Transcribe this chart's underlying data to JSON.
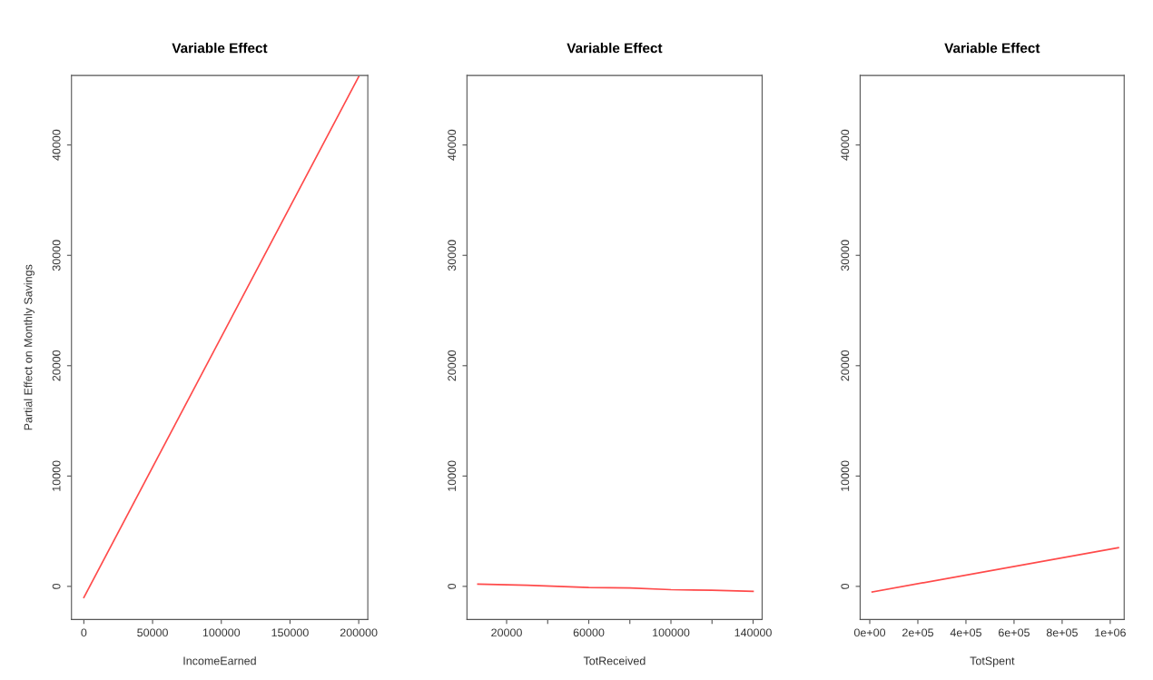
{
  "chart_data": [
    {
      "type": "line",
      "title": "Variable Effect",
      "xlabel": "IncomeEarned",
      "ylabel": "Partial Effect on Monthly Savings",
      "xlim": [
        -9000,
        206600
      ],
      "xticks": [
        0,
        50000,
        100000,
        150000,
        200000
      ],
      "ylim": [
        -3000,
        46300
      ],
      "yticks": [
        0,
        10000,
        20000,
        30000,
        40000
      ],
      "grid": false,
      "series": [
        {
          "color": "#ff4a4a",
          "x": [
            0,
            200000
          ],
          "values": [
            -1000,
            46200
          ]
        }
      ]
    },
    {
      "type": "line",
      "title": "Variable Effect",
      "xlabel": "TotReceived",
      "xlim": [
        700,
        144400
      ],
      "xticks": [
        20000,
        {
          "value": 40000,
          "label": null
        },
        60000,
        {
          "value": 80000,
          "label": null
        },
        100000,
        {
          "value": 120000,
          "label": null
        },
        140000
      ],
      "ylim": [
        -3000,
        46300
      ],
      "yticks": [
        0,
        10000,
        20000,
        30000,
        40000
      ],
      "grid": false,
      "series": [
        {
          "color": "#ff4a4a",
          "x": [
            6000,
            30000,
            60000,
            80000,
            100000,
            120000,
            140000
          ],
          "values": [
            200,
            100,
            -100,
            -150,
            -300,
            -350,
            -450
          ]
        }
      ]
    },
    {
      "type": "line",
      "title": "Variable Effect",
      "xlabel": "TotSpent",
      "xlim": [
        -40000,
        1058000
      ],
      "xticks": [
        {
          "value": 0,
          "label": "0e+00"
        },
        {
          "value": 200000,
          "label": "2e+05"
        },
        {
          "value": 400000,
          "label": "4e+05"
        },
        {
          "value": 600000,
          "label": "6e+05"
        },
        {
          "value": 800000,
          "label": "8e+05"
        },
        {
          "value": 1000000,
          "label": "1e+06"
        }
      ],
      "ylim": [
        -3000,
        46300
      ],
      "yticks": [
        0,
        10000,
        20000,
        30000,
        40000
      ],
      "grid": false,
      "series": [
        {
          "color": "#ff4a4a",
          "x": [
            10000,
            1034000
          ],
          "values": [
            -500,
            3500
          ]
        }
      ]
    }
  ]
}
